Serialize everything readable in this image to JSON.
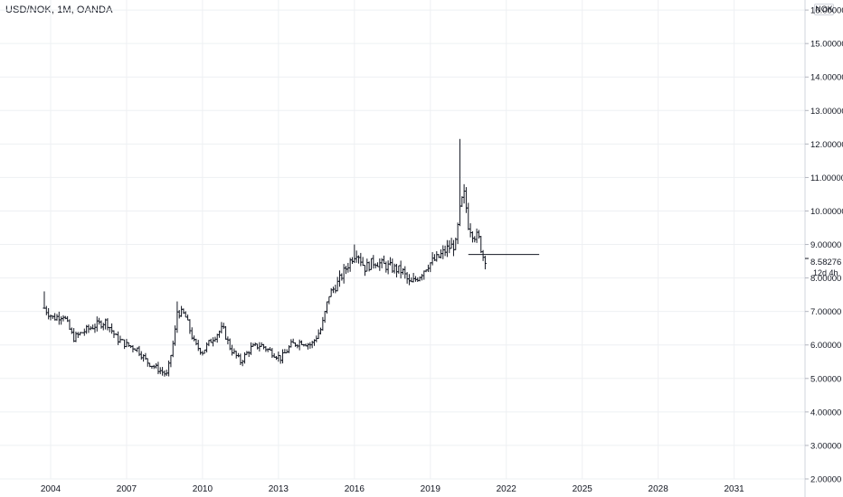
{
  "header": {
    "title": "USD/NOK, 1M, OANDA"
  },
  "price_axis": {
    "currency": "NOK",
    "last_value": "8.58276",
    "countdown": "12d 4h"
  },
  "chart_data": {
    "type": "ohlc",
    "title": "USD/NOK, 1M, OANDA",
    "xlabel": "",
    "ylabel": "",
    "ylim": [
      2.0,
      16.3
    ],
    "xlim": [
      2002.0,
      2033.8
    ],
    "grid": true,
    "y_ticks": [
      "2.00000",
      "3.00000",
      "4.00000",
      "5.00000",
      "6.00000",
      "7.00000",
      "8.00000",
      "9.00000",
      "10.00000",
      "11.00000",
      "12.00000",
      "13.00000",
      "14.00000",
      "15.00000",
      "16.00000"
    ],
    "x_ticks": [
      "2004",
      "2007",
      "2010",
      "2013",
      "2016",
      "2019",
      "2022",
      "2025",
      "2028",
      "2031"
    ],
    "horizontal_line": {
      "start": 2020.5,
      "end": 2023.3,
      "value": 8.7
    },
    "last_value": 8.58276,
    "series_points": [
      [
        2003.75,
        7.1
      ],
      [
        2004.1,
        6.8
      ],
      [
        2004.5,
        6.9
      ],
      [
        2004.9,
        6.2
      ],
      [
        2005.3,
        6.4
      ],
      [
        2005.8,
        6.6
      ],
      [
        2006.2,
        6.7
      ],
      [
        2006.6,
        6.2
      ],
      [
        2007.0,
        6.0
      ],
      [
        2007.4,
        5.9
      ],
      [
        2007.8,
        5.5
      ],
      [
        2008.2,
        5.3
      ],
      [
        2008.6,
        5.1
      ],
      [
        2008.9,
        6.3
      ],
      [
        2009.0,
        7.0
      ],
      [
        2009.3,
        6.9
      ],
      [
        2009.7,
        6.0
      ],
      [
        2010.0,
        5.8
      ],
      [
        2010.4,
        6.2
      ],
      [
        2010.8,
        6.5
      ],
      [
        2011.1,
        5.9
      ],
      [
        2011.5,
        5.5
      ],
      [
        2011.9,
        5.9
      ],
      [
        2012.3,
        6.0
      ],
      [
        2012.7,
        5.8
      ],
      [
        2013.1,
        5.6
      ],
      [
        2013.5,
        6.0
      ],
      [
        2013.9,
        6.1
      ],
      [
        2014.3,
        6.0
      ],
      [
        2014.7,
        6.5
      ],
      [
        2015.0,
        7.5
      ],
      [
        2015.3,
        7.8
      ],
      [
        2015.6,
        8.2
      ],
      [
        2015.9,
        8.6
      ],
      [
        2016.1,
        8.8
      ],
      [
        2016.4,
        8.3
      ],
      [
        2016.8,
        8.5
      ],
      [
        2017.1,
        8.4
      ],
      [
        2017.5,
        8.3
      ],
      [
        2017.9,
        8.2
      ],
      [
        2018.2,
        7.8
      ],
      [
        2018.6,
        8.1
      ],
      [
        2018.9,
        8.4
      ],
      [
        2019.3,
        8.6
      ],
      [
        2019.7,
        8.9
      ],
      [
        2020.0,
        9.0
      ],
      [
        2020.2,
        10.2
      ],
      [
        2020.35,
        10.5
      ],
      [
        2020.5,
        9.6
      ],
      [
        2020.7,
        9.3
      ],
      [
        2020.9,
        9.2
      ],
      [
        2021.1,
        8.6
      ],
      [
        2021.2,
        8.58
      ]
    ],
    "spikes": [
      {
        "x": 2003.75,
        "high": 7.6
      },
      {
        "x": 2009.0,
        "high": 7.3
      },
      {
        "x": 2016.0,
        "high": 9.0
      },
      {
        "x": 2020.2,
        "high": 12.15
      },
      {
        "x": 2020.35,
        "high": 10.8
      }
    ]
  }
}
